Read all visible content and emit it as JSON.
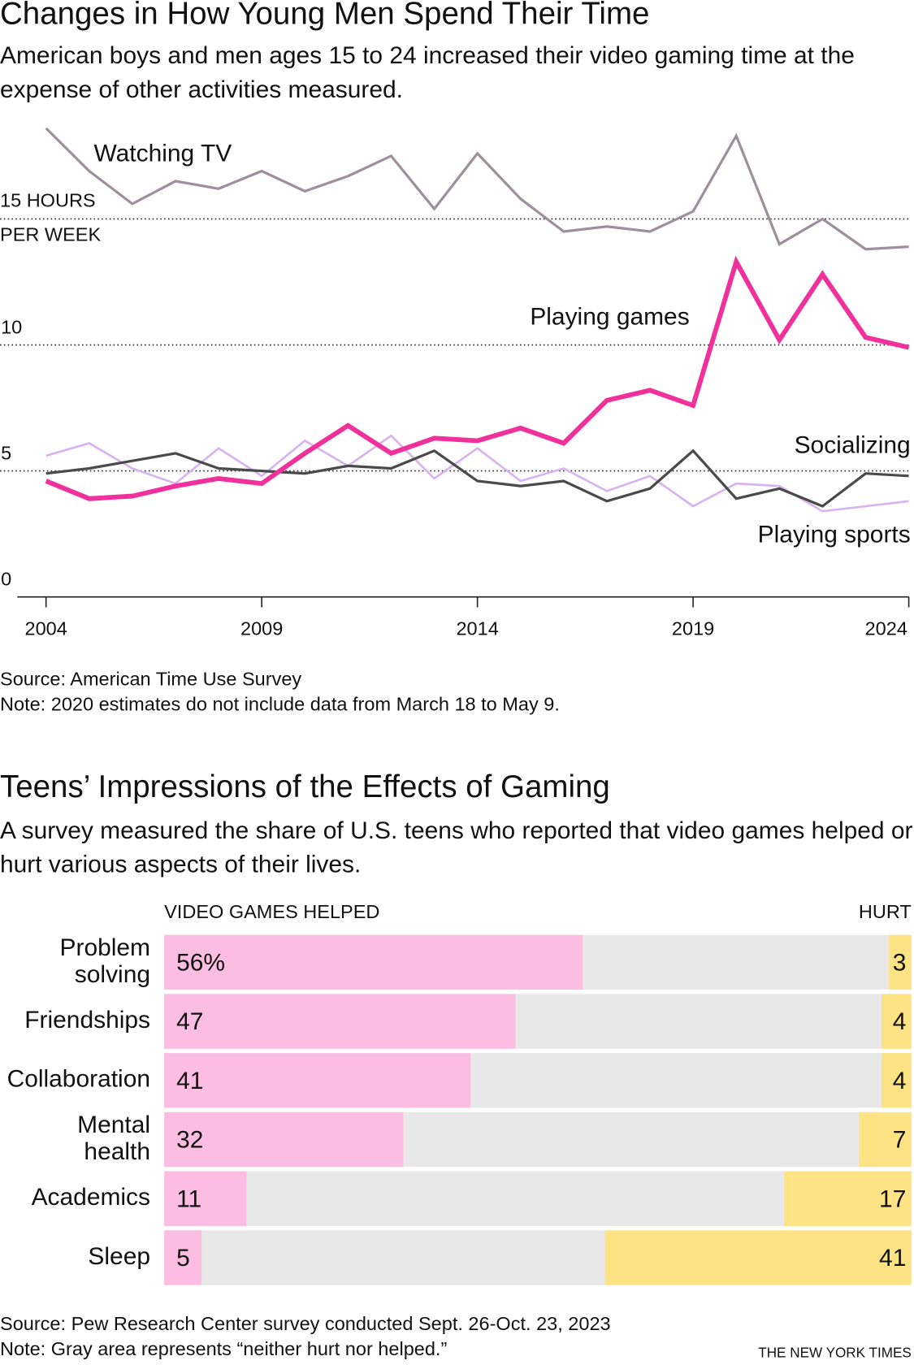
{
  "chart_data": [
    {
      "type": "line",
      "title": "Changes in How Young Men Spend Their Time",
      "subtitle": "American boys and men ages 15 to 24 increased their video gaming time at the expense of other activities measured.",
      "x": [
        2004,
        2005,
        2006,
        2007,
        2008,
        2009,
        2010,
        2011,
        2012,
        2013,
        2014,
        2015,
        2016,
        2017,
        2018,
        2019,
        2020,
        2021,
        2022,
        2023,
        2024
      ],
      "series": [
        {
          "name": "Watching TV",
          "color": "#9e8f9c",
          "values": [
            18.6,
            16.9,
            15.6,
            16.5,
            16.2,
            16.9,
            16.1,
            16.7,
            17.5,
            15.4,
            17.6,
            15.8,
            14.5,
            14.7,
            14.5,
            15.3,
            18.3,
            14.0,
            15.0,
            13.8,
            13.9
          ]
        },
        {
          "name": "Playing games",
          "color": "#f0309b",
          "values": [
            4.6,
            3.9,
            4.0,
            4.4,
            4.7,
            4.5,
            5.7,
            6.8,
            5.7,
            6.3,
            6.2,
            6.7,
            6.1,
            7.8,
            8.2,
            7.6,
            13.3,
            10.2,
            12.8,
            10.3,
            9.9
          ]
        },
        {
          "name": "Socializing",
          "color": "#4a4a4a",
          "values": [
            4.9,
            5.1,
            5.4,
            5.7,
            5.1,
            5.0,
            4.9,
            5.2,
            5.1,
            5.8,
            4.6,
            4.4,
            4.6,
            3.8,
            4.3,
            5.8,
            3.9,
            4.3,
            3.6,
            4.9,
            4.8
          ]
        },
        {
          "name": "Playing sports",
          "color": "#d9b3ef",
          "values": [
            5.6,
            6.1,
            5.1,
            4.5,
            5.9,
            4.8,
            6.2,
            5.2,
            6.4,
            4.7,
            5.9,
            4.6,
            5.1,
            4.2,
            4.8,
            3.6,
            4.5,
            4.4,
            3.4,
            3.6,
            3.8
          ]
        }
      ],
      "xlim": [
        2004,
        2024
      ],
      "xticks": [
        2004,
        2009,
        2014,
        2019,
        2024
      ],
      "ylim": [
        0,
        19
      ],
      "yticks": [
        0,
        5,
        10,
        {
          "value": 15,
          "label": "15 HOURS PER WEEK"
        }
      ],
      "grid": true,
      "source": "Source: American Time Use Survey",
      "note": "Note: 2020 estimates do not include data from March 18 to May 9."
    },
    {
      "type": "diverging_bar",
      "title": "Teens’ Impressions of the Effects of Gaming",
      "subtitle": "A survey measured the share of U.S. teens who reported that video games helped or hurt various aspects of their lives.",
      "categories": [
        "Problem solving",
        "Friendships",
        "Collaboration",
        "Mental health",
        "Academics",
        "Sleep"
      ],
      "series": [
        {
          "name": "VIDEO GAMES HELPED",
          "color": "#fbbde2",
          "values": [
            56,
            47,
            41,
            32,
            11,
            5
          ],
          "value_labels": [
            "56%",
            "47",
            "41",
            "32",
            "11",
            "5"
          ]
        },
        {
          "name": "HURT",
          "color": "#fde384",
          "values": [
            3,
            4,
            4,
            7,
            17,
            41
          ]
        }
      ],
      "xlim": [
        0,
        100
      ],
      "remainder_color": "#e8e8e8",
      "source": "Source: Pew Research Center survey conducted Sept. 26-Oct. 23, 2023",
      "note": "Note: Gray area represents “neither hurt nor helped.”"
    }
  ],
  "credit": "THE NEW YORK TIMES"
}
